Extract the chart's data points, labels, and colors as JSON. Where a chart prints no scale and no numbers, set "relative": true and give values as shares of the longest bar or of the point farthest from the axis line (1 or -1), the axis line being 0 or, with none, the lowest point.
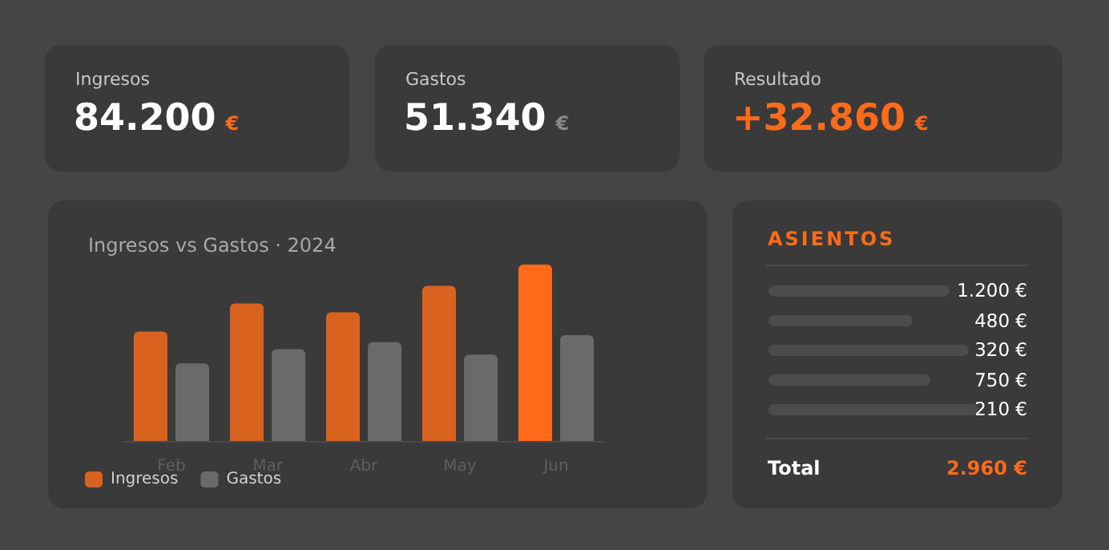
{
  "chart_data": [
    {
      "type": "other",
      "title": "Ingresos",
      "annotations": [
        "84.200",
        "€"
      ]
    },
    {
      "type": "other",
      "title": "Gastos",
      "annotations": [
        "51.340",
        "€"
      ]
    },
    {
      "type": "other",
      "title": "Resultado",
      "annotations": [
        "+32.860",
        "€"
      ]
    },
    {
      "type": "bar",
      "title": "Ingresos vs Gastos · 2024",
      "categories": [
        "Feb",
        "Mar",
        "Abr",
        "May",
        "Jun"
      ],
      "relative": true,
      "legend": "bottom left",
      "series": [
        {
          "name": "Ingresos",
          "color": "#d9621f",
          "colors": [
            "#d9621f",
            "#d9621f",
            "#d9621f",
            "#d9621f",
            "#ff6b1a"
          ],
          "values": [
            0.62,
            0.78,
            0.73,
            0.88,
            1
          ]
        },
        {
          "name": "Gastos",
          "color": "#6a6a6a",
          "values": [
            0.44,
            0.52,
            0.56,
            0.49,
            0.6
          ]
        }
      ]
    },
    {
      "type": "other",
      "title": "ASIENTOS",
      "annotations": [
        "1.200 €",
        "480 €",
        "320 €",
        "750 €",
        "210 €",
        "Total",
        "2.960 €"
      ]
    }
  ]
}
